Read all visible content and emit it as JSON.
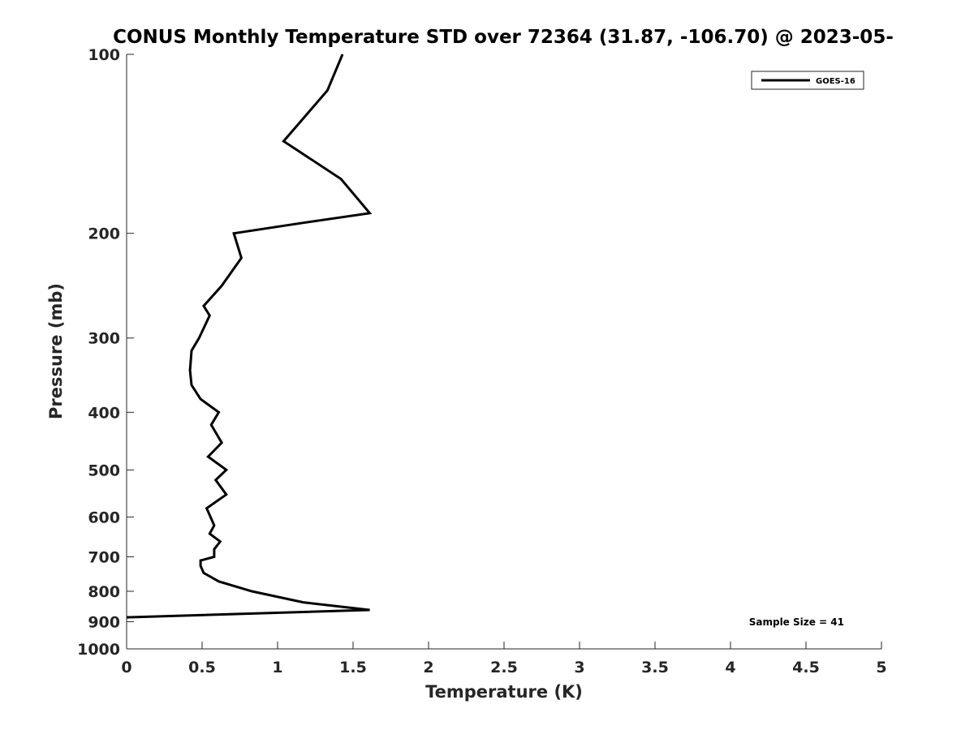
{
  "chart_data": {
    "type": "line",
    "title": "CONUS Monthly Temperature STD over 72364 (31.87, -106.70) @ 2023-05-",
    "xlabel": "Temperature (K)",
    "ylabel": "Pressure (mb)",
    "xlim": [
      0,
      5
    ],
    "ylim": [
      100,
      1000
    ],
    "y_scale": "log",
    "y_reversed": true,
    "x_ticks": [
      "0",
      "0.5",
      "1",
      "1.5",
      "2",
      "2.5",
      "3",
      "3.5",
      "4",
      "4.5",
      "5"
    ],
    "y_ticks": [
      "100",
      "200",
      "300",
      "400",
      "500",
      "600",
      "700",
      "800",
      "900",
      "1000"
    ],
    "grid": false,
    "legend_position": "top-right",
    "annotation": "Sample Size = 41",
    "series": [
      {
        "name": "GOES-16",
        "color": "#000000",
        "x": [
          1.43,
          1.33,
          1.04,
          1.42,
          1.61,
          1.17,
          0.71,
          0.76,
          0.63,
          0.51,
          0.55,
          0.48,
          0.43,
          0.42,
          0.43,
          0.49,
          0.61,
          0.56,
          0.63,
          0.54,
          0.66,
          0.59,
          0.66,
          0.53,
          0.58,
          0.55,
          0.62,
          0.58,
          0.58,
          0.49,
          0.49,
          0.51,
          0.61,
          0.83,
          1.17,
          1.61,
          0.0
        ],
        "y": [
          100,
          115,
          140,
          162,
          185,
          192,
          200,
          220,
          245,
          265,
          275,
          300,
          315,
          340,
          360,
          380,
          400,
          420,
          450,
          475,
          500,
          520,
          550,
          580,
          620,
          640,
          660,
          680,
          700,
          710,
          725,
          745,
          770,
          800,
          835,
          860,
          885
        ]
      }
    ]
  }
}
